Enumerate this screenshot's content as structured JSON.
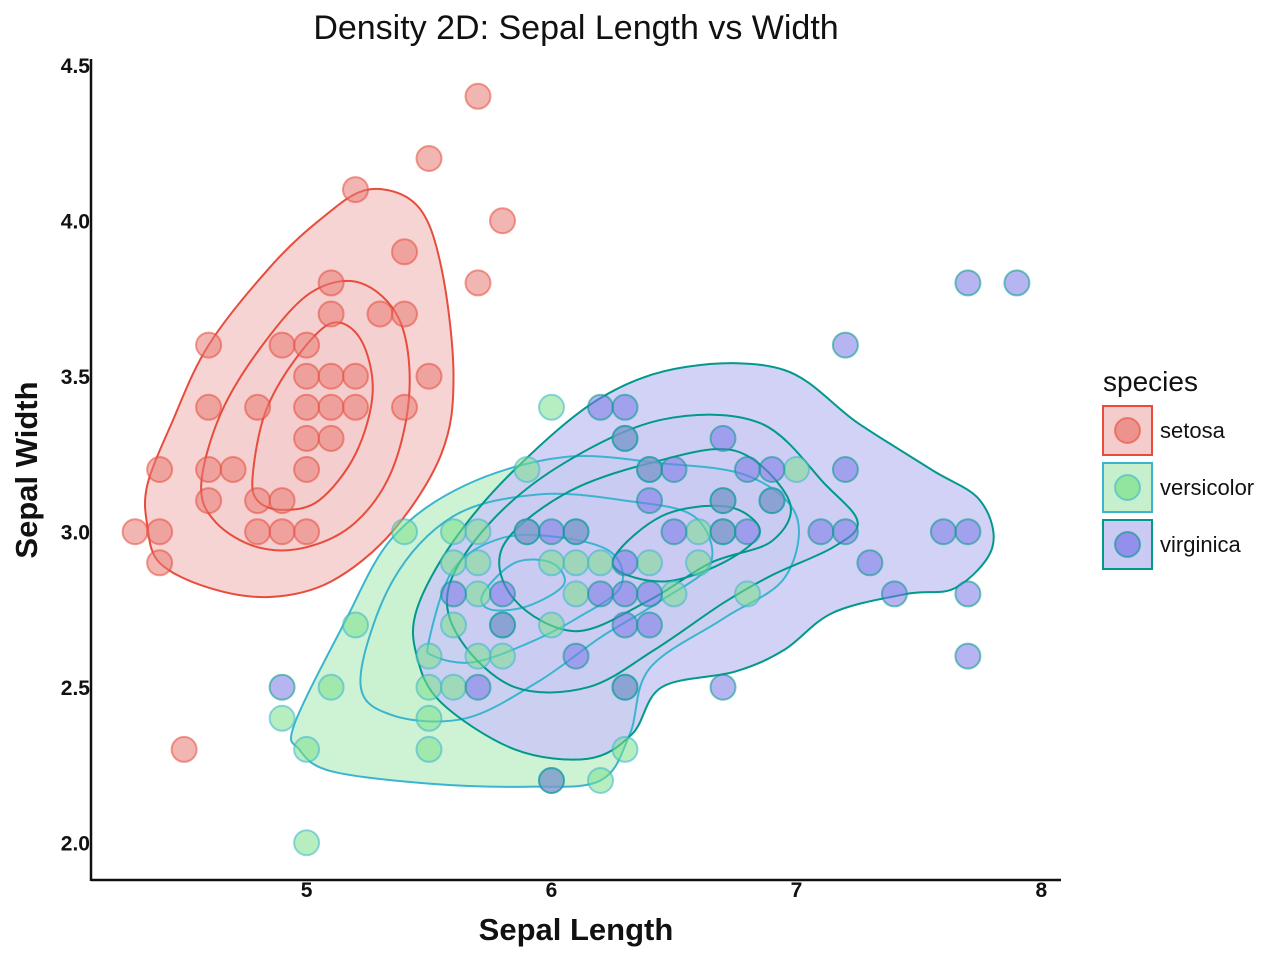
{
  "chart_data": {
    "type": "scatter",
    "title": "Density 2D: Sepal Length vs Width",
    "xlabel": "Sepal Length",
    "ylabel": "Sepal Width",
    "xlim": [
      4.12,
      8.08
    ],
    "ylim": [
      1.88,
      4.52
    ],
    "x_ticks": [
      5,
      6,
      7,
      8
    ],
    "y_ticks": [
      2.0,
      2.5,
      3.0,
      3.5,
      4.0,
      4.5
    ],
    "grid": false,
    "legend": {
      "title": "species",
      "position": "right"
    },
    "density_contours": true,
    "series": [
      {
        "name": "setosa",
        "color": "#e74c3c",
        "point_color": "#e87a72",
        "fill": "#f4cccc",
        "points": [
          [
            4.3,
            3.0
          ],
          [
            4.4,
            2.9
          ],
          [
            4.4,
            3.0
          ],
          [
            4.4,
            3.2
          ],
          [
            4.5,
            2.3
          ],
          [
            4.6,
            3.1
          ],
          [
            4.6,
            3.2
          ],
          [
            4.6,
            3.4
          ],
          [
            4.6,
            3.6
          ],
          [
            4.7,
            3.2
          ],
          [
            4.8,
            3.0
          ],
          [
            4.8,
            3.1
          ],
          [
            4.8,
            3.4
          ],
          [
            4.9,
            3.0
          ],
          [
            4.9,
            3.1
          ],
          [
            4.9,
            3.6
          ],
          [
            5.0,
            3.0
          ],
          [
            5.0,
            3.2
          ],
          [
            5.0,
            3.3
          ],
          [
            5.0,
            3.4
          ],
          [
            5.0,
            3.5
          ],
          [
            5.0,
            3.6
          ],
          [
            5.1,
            3.3
          ],
          [
            5.1,
            3.4
          ],
          [
            5.1,
            3.5
          ],
          [
            5.1,
            3.7
          ],
          [
            5.1,
            3.8
          ],
          [
            5.2,
            3.4
          ],
          [
            5.2,
            3.5
          ],
          [
            5.2,
            4.1
          ],
          [
            5.3,
            3.7
          ],
          [
            5.4,
            3.4
          ],
          [
            5.4,
            3.7
          ],
          [
            5.4,
            3.9
          ],
          [
            5.5,
            3.5
          ],
          [
            5.5,
            4.2
          ],
          [
            5.7,
            3.8
          ],
          [
            5.7,
            4.4
          ],
          [
            5.8,
            4.0
          ]
        ]
      },
      {
        "name": "versicolor",
        "color": "#3bb5cf",
        "point_color": "#7ce08c",
        "fill": "#c6f0cc",
        "points": [
          [
            4.9,
            2.4
          ],
          [
            5.0,
            2.0
          ],
          [
            5.0,
            2.3
          ],
          [
            5.1,
            2.5
          ],
          [
            5.2,
            2.7
          ],
          [
            5.4,
            3.0
          ],
          [
            5.5,
            2.3
          ],
          [
            5.5,
            2.4
          ],
          [
            5.5,
            2.5
          ],
          [
            5.5,
            2.6
          ],
          [
            5.6,
            2.5
          ],
          [
            5.6,
            2.7
          ],
          [
            5.6,
            2.9
          ],
          [
            5.6,
            3.0
          ],
          [
            5.7,
            2.6
          ],
          [
            5.7,
            2.8
          ],
          [
            5.7,
            2.9
          ],
          [
            5.7,
            3.0
          ],
          [
            5.8,
            2.6
          ],
          [
            5.8,
            2.7
          ],
          [
            5.9,
            3.0
          ],
          [
            5.9,
            3.2
          ],
          [
            6.0,
            2.2
          ],
          [
            6.0,
            2.7
          ],
          [
            6.0,
            2.9
          ],
          [
            6.0,
            3.4
          ],
          [
            6.1,
            2.8
          ],
          [
            6.1,
            2.9
          ],
          [
            6.1,
            3.0
          ],
          [
            6.2,
            2.2
          ],
          [
            6.2,
            2.9
          ],
          [
            6.3,
            2.3
          ],
          [
            6.3,
            2.5
          ],
          [
            6.3,
            3.3
          ],
          [
            6.4,
            2.9
          ],
          [
            6.4,
            3.2
          ],
          [
            6.5,
            2.8
          ],
          [
            6.6,
            2.9
          ],
          [
            6.6,
            3.0
          ],
          [
            6.7,
            3.0
          ],
          [
            6.7,
            3.1
          ],
          [
            6.8,
            2.8
          ],
          [
            6.9,
            3.1
          ],
          [
            7.0,
            3.2
          ]
        ]
      },
      {
        "name": "virginica",
        "color": "#00998a",
        "point_color": "#7a78e8",
        "fill": "#cacaf4",
        "points": [
          [
            4.9,
            2.5
          ],
          [
            5.6,
            2.8
          ],
          [
            5.7,
            2.5
          ],
          [
            5.8,
            2.7
          ],
          [
            5.8,
            2.8
          ],
          [
            5.9,
            3.0
          ],
          [
            6.0,
            2.2
          ],
          [
            6.0,
            3.0
          ],
          [
            6.1,
            2.6
          ],
          [
            6.1,
            3.0
          ],
          [
            6.2,
            2.8
          ],
          [
            6.2,
            3.4
          ],
          [
            6.3,
            2.5
          ],
          [
            6.3,
            2.7
          ],
          [
            6.3,
            2.8
          ],
          [
            6.3,
            2.9
          ],
          [
            6.3,
            3.3
          ],
          [
            6.3,
            3.4
          ],
          [
            6.4,
            2.7
          ],
          [
            6.4,
            2.8
          ],
          [
            6.4,
            3.1
          ],
          [
            6.4,
            3.2
          ],
          [
            6.5,
            3.0
          ],
          [
            6.5,
            3.2
          ],
          [
            6.7,
            2.5
          ],
          [
            6.7,
            3.0
          ],
          [
            6.7,
            3.1
          ],
          [
            6.7,
            3.3
          ],
          [
            6.8,
            3.0
          ],
          [
            6.8,
            3.2
          ],
          [
            6.9,
            3.1
          ],
          [
            6.9,
            3.2
          ],
          [
            7.1,
            3.0
          ],
          [
            7.2,
            3.0
          ],
          [
            7.2,
            3.2
          ],
          [
            7.2,
            3.6
          ],
          [
            7.3,
            2.9
          ],
          [
            7.4,
            2.8
          ],
          [
            7.6,
            3.0
          ],
          [
            7.7,
            2.6
          ],
          [
            7.7,
            2.8
          ],
          [
            7.7,
            3.0
          ],
          [
            7.7,
            3.8
          ],
          [
            7.9,
            3.8
          ]
        ]
      }
    ],
    "contours": [
      {
        "name": "setosa",
        "levels": [
          [
            [
              4.35,
              3.15
            ],
            [
              4.45,
              3.35
            ],
            [
              4.6,
              3.6
            ],
            [
              4.85,
              3.85
            ],
            [
              5.05,
              4.0
            ],
            [
              5.25,
              4.1
            ],
            [
              5.45,
              4.05
            ],
            [
              5.55,
              3.85
            ],
            [
              5.6,
              3.5
            ],
            [
              5.55,
              3.25
            ],
            [
              5.35,
              3.0
            ],
            [
              5.1,
              2.84
            ],
            [
              4.85,
              2.79
            ],
            [
              4.6,
              2.82
            ],
            [
              4.4,
              2.9
            ],
            [
              4.35,
              3.02
            ]
          ],
          [
            [
              4.57,
              3.15
            ],
            [
              4.65,
              3.38
            ],
            [
              4.82,
              3.6
            ],
            [
              5.02,
              3.77
            ],
            [
              5.22,
              3.8
            ],
            [
              5.38,
              3.68
            ],
            [
              5.42,
              3.45
            ],
            [
              5.35,
              3.2
            ],
            [
              5.2,
              3.03
            ],
            [
              5.0,
              2.95
            ],
            [
              4.8,
              2.95
            ],
            [
              4.63,
              3.03
            ]
          ],
          [
            [
              4.78,
              3.18
            ],
            [
              4.83,
              3.38
            ],
            [
              4.95,
              3.55
            ],
            [
              5.1,
              3.67
            ],
            [
              5.22,
              3.62
            ],
            [
              5.27,
              3.45
            ],
            [
              5.2,
              3.25
            ],
            [
              5.05,
              3.1
            ],
            [
              4.9,
              3.07
            ],
            [
              4.8,
              3.1
            ]
          ]
        ]
      },
      {
        "name": "versicolor",
        "levels": [
          [
            [
              4.95,
              2.38
            ],
            [
              5.15,
              2.7
            ],
            [
              5.35,
              2.98
            ],
            [
              5.65,
              3.15
            ],
            [
              6.05,
              3.24
            ],
            [
              6.45,
              3.22
            ],
            [
              6.8,
              3.18
            ],
            [
              7.0,
              3.05
            ],
            [
              6.95,
              2.85
            ],
            [
              6.7,
              2.72
            ],
            [
              6.4,
              2.56
            ],
            [
              6.32,
              2.35
            ],
            [
              6.2,
              2.2
            ],
            [
              5.9,
              2.18
            ],
            [
              5.5,
              2.19
            ],
            [
              5.1,
              2.23
            ],
            [
              4.97,
              2.3
            ]
          ],
          [
            [
              5.22,
              2.52
            ],
            [
              5.35,
              2.84
            ],
            [
              5.6,
              3.05
            ],
            [
              5.95,
              3.12
            ],
            [
              6.3,
              3.1
            ],
            [
              6.58,
              3.05
            ],
            [
              6.65,
              2.9
            ],
            [
              6.45,
              2.78
            ],
            [
              6.2,
              2.66
            ],
            [
              5.95,
              2.52
            ],
            [
              5.65,
              2.4
            ],
            [
              5.35,
              2.41
            ]
          ],
          [
            [
              5.5,
              2.65
            ],
            [
              5.6,
              2.88
            ],
            [
              5.8,
              2.98
            ],
            [
              6.05,
              2.98
            ],
            [
              6.25,
              2.93
            ],
            [
              6.28,
              2.82
            ],
            [
              6.1,
              2.72
            ],
            [
              5.9,
              2.64
            ],
            [
              5.68,
              2.58
            ],
            [
              5.52,
              2.6
            ]
          ],
          [
            [
              5.72,
              2.8
            ],
            [
              5.85,
              2.9
            ],
            [
              6.0,
              2.9
            ],
            [
              6.05,
              2.83
            ],
            [
              5.9,
              2.76
            ],
            [
              5.75,
              2.75
            ]
          ]
        ]
      },
      {
        "name": "virginica",
        "levels": [
          [
            [
              5.45,
              2.75
            ],
            [
              5.6,
              2.97
            ],
            [
              5.85,
              3.2
            ],
            [
              6.2,
              3.43
            ],
            [
              6.55,
              3.53
            ],
            [
              6.95,
              3.52
            ],
            [
              7.25,
              3.35
            ],
            [
              7.55,
              3.2
            ],
            [
              7.75,
              3.1
            ],
            [
              7.8,
              2.95
            ],
            [
              7.65,
              2.82
            ],
            [
              7.45,
              2.8
            ],
            [
              7.15,
              2.74
            ],
            [
              6.95,
              2.62
            ],
            [
              6.75,
              2.55
            ],
            [
              6.45,
              2.5
            ],
            [
              6.33,
              2.35
            ],
            [
              6.15,
              2.27
            ],
            [
              5.85,
              2.3
            ],
            [
              5.55,
              2.45
            ],
            [
              5.45,
              2.6
            ]
          ],
          [
            [
              5.58,
              2.82
            ],
            [
              5.75,
              3.03
            ],
            [
              6.05,
              3.22
            ],
            [
              6.45,
              3.36
            ],
            [
              6.85,
              3.35
            ],
            [
              7.12,
              3.15
            ],
            [
              7.25,
              3.03
            ],
            [
              7.15,
              2.95
            ],
            [
              6.9,
              2.86
            ],
            [
              6.7,
              2.77
            ],
            [
              6.42,
              2.62
            ],
            [
              6.15,
              2.5
            ],
            [
              5.85,
              2.5
            ],
            [
              5.63,
              2.65
            ]
          ],
          [
            [
              5.8,
              2.95
            ],
            [
              6.05,
              3.12
            ],
            [
              6.4,
              3.22
            ],
            [
              6.75,
              3.26
            ],
            [
              6.97,
              3.1
            ],
            [
              6.9,
              2.97
            ],
            [
              6.65,
              2.9
            ],
            [
              6.4,
              2.78
            ],
            [
              6.1,
              2.68
            ],
            [
              5.85,
              2.78
            ]
          ],
          [
            [
              6.25,
              2.9
            ],
            [
              6.45,
              3.05
            ],
            [
              6.72,
              3.08
            ],
            [
              6.85,
              3.0
            ],
            [
              6.7,
              2.9
            ],
            [
              6.45,
              2.84
            ]
          ]
        ]
      }
    ]
  }
}
